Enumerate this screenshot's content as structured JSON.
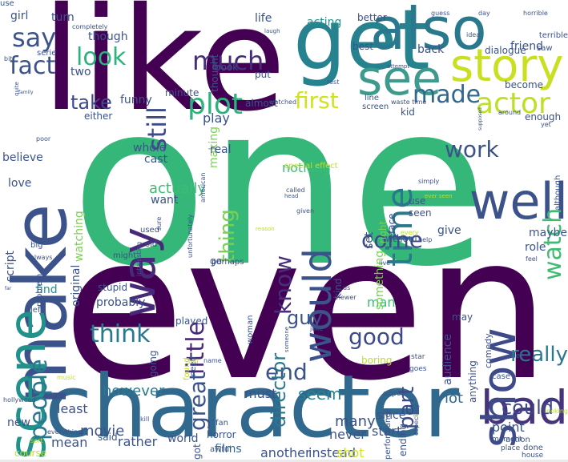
{
  "palette": {
    "purple": "#440154",
    "indigo": "#3b528b",
    "teal": "#21918c",
    "green": "#3fbc73",
    "lime": "#bddf26",
    "yellow": "#fde725"
  },
  "words": [
    {
      "text": "one",
      "color": "#35b779",
      "orientation": "horizontal"
    },
    {
      "text": "even",
      "color": "#440154",
      "orientation": "horizontal"
    },
    {
      "text": "like",
      "color": "#440154",
      "orientation": "horizontal"
    },
    {
      "text": "character",
      "color": "#31688e",
      "orientation": "horizontal"
    },
    {
      "text": "get",
      "color": "#26828e",
      "orientation": "horizontal"
    },
    {
      "text": "make",
      "color": "#3b528b",
      "orientation": "vertical"
    },
    {
      "text": "also",
      "color": "#2a788e",
      "orientation": "horizontal"
    },
    {
      "text": "story",
      "color": "#c8e020",
      "orientation": "horizontal"
    },
    {
      "text": "see",
      "color": "#3e9a8c",
      "orientation": "horizontal"
    },
    {
      "text": "well",
      "color": "#3b528b",
      "orientation": "horizontal"
    },
    {
      "text": "scene",
      "color": "#21918c",
      "orientation": "vertical"
    },
    {
      "text": "bad",
      "color": "#46337e",
      "orientation": "horizontal"
    },
    {
      "text": "show",
      "color": "#3e4a89",
      "orientation": "vertical"
    },
    {
      "text": "way",
      "color": "#482878",
      "orientation": "vertical"
    },
    {
      "text": "would",
      "color": "#3b528b",
      "orientation": "vertical"
    },
    {
      "text": "time",
      "color": "#2a788e",
      "orientation": "vertical"
    },
    {
      "text": "plot",
      "color": "#2db27d",
      "orientation": "horizontal"
    },
    {
      "text": "actor",
      "color": "#bddf26",
      "orientation": "horizontal"
    },
    {
      "text": "made",
      "color": "#31688e",
      "orientation": "horizontal"
    },
    {
      "text": "first",
      "color": "#d2e21b",
      "orientation": "horizontal"
    },
    {
      "text": "much",
      "color": "#472c7a",
      "orientation": "horizontal"
    },
    {
      "text": "say",
      "color": "#3b528b",
      "orientation": "horizontal"
    },
    {
      "text": "look",
      "color": "#2db27d",
      "orientation": "horizontal"
    },
    {
      "text": "fact",
      "color": "#3b528b",
      "orientation": "horizontal"
    },
    {
      "text": "still",
      "color": "#3e4a89",
      "orientation": "vertical"
    },
    {
      "text": "take",
      "color": "#3e4989",
      "orientation": "horizontal"
    },
    {
      "text": "work",
      "color": "#3b528b",
      "orientation": "horizontal"
    },
    {
      "text": "watch",
      "color": "#3fbc73",
      "orientation": "vertical"
    },
    {
      "text": "know",
      "color": "#472d7b",
      "orientation": "vertical"
    },
    {
      "text": "come",
      "color": "#3e4989",
      "orientation": "horizontal"
    },
    {
      "text": "little",
      "color": "#482878",
      "orientation": "vertical"
    },
    {
      "text": "thing",
      "color": "#7ad151",
      "orientation": "vertical"
    },
    {
      "text": "people",
      "color": "#2a788e",
      "orientation": "vertical"
    },
    {
      "text": "think",
      "color": "#2a788e",
      "orientation": "horizontal"
    },
    {
      "text": "great",
      "color": "#3b528b",
      "orientation": "vertical"
    },
    {
      "text": "end",
      "color": "#3b528b",
      "orientation": "horizontal"
    },
    {
      "text": "good",
      "color": "#3e4989",
      "orientation": "horizontal"
    },
    {
      "text": "really",
      "color": "#2a788e",
      "orientation": "horizontal"
    },
    {
      "text": "director",
      "color": "#2a788e",
      "orientation": "vertical"
    },
    {
      "text": "guy",
      "color": "#3b528b",
      "orientation": "horizontal"
    },
    {
      "text": "part",
      "color": "#3e4989",
      "orientation": "vertical"
    },
    {
      "text": "could",
      "color": "#3e4989",
      "orientation": "horizontal"
    },
    {
      "text": "seem",
      "color": "#26828e",
      "orientation": "horizontal"
    },
    {
      "text": "however",
      "color": "#2a788e",
      "orientation": "horizontal"
    },
    {
      "text": "actually",
      "color": "#3fbc73",
      "orientation": "horizontal"
    },
    {
      "text": "play",
      "color": "#3b528b",
      "orientation": "horizontal"
    },
    {
      "text": "funny",
      "color": "#3b528b",
      "orientation": "horizontal"
    },
    {
      "text": "nothing",
      "color": "#3fbc73",
      "orientation": "horizontal"
    },
    {
      "text": "man",
      "color": "#3fbc73",
      "orientation": "horizontal"
    },
    {
      "text": "lot",
      "color": "#31688e",
      "orientation": "horizontal"
    },
    {
      "text": "movie",
      "color": "#3b528b",
      "orientation": "horizontal"
    },
    {
      "text": "many",
      "color": "#3b528b",
      "orientation": "horizontal"
    },
    {
      "text": "never",
      "color": "#3b528b",
      "orientation": "horizontal"
    },
    {
      "text": "since",
      "color": "#3b528b",
      "orientation": "horizontal"
    },
    {
      "text": "must",
      "color": "#3b528b",
      "orientation": "horizontal"
    },
    {
      "text": "least",
      "color": "#3b528b",
      "orientation": "horizontal"
    },
    {
      "text": "mean",
      "color": "#3b528b",
      "orientation": "horizontal"
    },
    {
      "text": "rather",
      "color": "#3b528b",
      "orientation": "horizontal"
    },
    {
      "text": "start",
      "color": "#3b528b",
      "orientation": "horizontal"
    },
    {
      "text": "another",
      "color": "#3b528b",
      "orientation": "horizontal"
    },
    {
      "text": "instead",
      "color": "#3b528b",
      "orientation": "horizontal"
    },
    {
      "text": "shot",
      "color": "#d2e21b",
      "orientation": "horizontal"
    },
    {
      "text": "world",
      "color": "#3b528b",
      "orientation": "horizontal"
    },
    {
      "text": "films",
      "color": "#31688e",
      "orientation": "horizontal"
    },
    {
      "text": "point",
      "color": "#3b528b",
      "orientation": "horizontal"
    },
    {
      "text": "role",
      "color": "#3b528b",
      "orientation": "horizontal"
    },
    {
      "text": "maybe",
      "color": "#3b528b",
      "orientation": "horizontal"
    },
    {
      "text": "give",
      "color": "#3b528b",
      "orientation": "horizontal"
    },
    {
      "text": "probably",
      "color": "#3b528b",
      "orientation": "horizontal"
    },
    {
      "text": "find",
      "color": "#21918c",
      "orientation": "horizontal"
    },
    {
      "text": "love",
      "color": "#3b528b",
      "orientation": "horizontal"
    },
    {
      "text": "want",
      "color": "#3b528b",
      "orientation": "horizontal"
    },
    {
      "text": "cast",
      "color": "#3b528b",
      "orientation": "horizontal"
    },
    {
      "text": "whole",
      "color": "#3b528b",
      "orientation": "horizontal"
    },
    {
      "text": "either",
      "color": "#3b528b",
      "orientation": "horizontal"
    },
    {
      "text": "back",
      "color": "#3b528b",
      "orientation": "horizontal"
    },
    {
      "text": "friend",
      "color": "#3b528b",
      "orientation": "horizontal"
    },
    {
      "text": "two",
      "color": "#3b528b",
      "orientation": "horizontal"
    },
    {
      "text": "though",
      "color": "#3b528b",
      "orientation": "horizontal"
    },
    {
      "text": "turn",
      "color": "#3b528b",
      "orientation": "horizontal"
    },
    {
      "text": "girl",
      "color": "#3b528b",
      "orientation": "horizontal"
    },
    {
      "text": "life",
      "color": "#3b528b",
      "orientation": "horizontal"
    },
    {
      "text": "acting",
      "color": "#21918c",
      "orientation": "horizontal"
    },
    {
      "text": "better",
      "color": "#3b528b",
      "orientation": "horizontal"
    },
    {
      "text": "minute",
      "color": "#3b528b",
      "orientation": "horizontal"
    },
    {
      "text": "thought",
      "color": "#3b528b",
      "orientation": "vertical"
    },
    {
      "text": "book",
      "color": "#3b528b",
      "orientation": "horizontal"
    },
    {
      "text": "put",
      "color": "#3b528b",
      "orientation": "horizontal"
    },
    {
      "text": "almost",
      "color": "#3b528b",
      "orientation": "horizontal"
    },
    {
      "text": "kid",
      "color": "#3b528b",
      "orientation": "horizontal"
    },
    {
      "text": "become",
      "color": "#3b528b",
      "orientation": "horizontal"
    },
    {
      "text": "enough",
      "color": "#3b528b",
      "orientation": "horizontal"
    },
    {
      "text": "believe",
      "color": "#3b528b",
      "orientation": "horizontal"
    },
    {
      "text": "watching",
      "color": "#7ad151",
      "orientation": "vertical"
    },
    {
      "text": "original",
      "color": "#3b528b",
      "orientation": "vertical"
    },
    {
      "text": "script",
      "color": "#3b528b",
      "orientation": "vertical"
    },
    {
      "text": "making",
      "color": "#7ad151",
      "orientation": "vertical"
    },
    {
      "text": "real",
      "color": "#3b528b",
      "orientation": "horizontal"
    },
    {
      "text": "go",
      "color": "#3b528b",
      "orientation": "horizontal"
    },
    {
      "text": "kind",
      "color": "#3b528b",
      "orientation": "vertical"
    },
    {
      "text": "audience",
      "color": "#3b528b",
      "orientation": "vertical"
    },
    {
      "text": "something",
      "color": "#7ad151",
      "orientation": "vertical"
    },
    {
      "text": "without",
      "color": "#3b528b",
      "orientation": "horizontal"
    },
    {
      "text": "set",
      "color": "#3b528b",
      "orientation": "vertical"
    },
    {
      "text": "right",
      "color": "#7ad151",
      "orientation": "vertical"
    },
    {
      "text": "use",
      "color": "#3b528b",
      "orientation": "horizontal"
    },
    {
      "text": "seen",
      "color": "#3b528b",
      "orientation": "horizontal"
    },
    {
      "text": "best",
      "color": "#3b528b",
      "orientation": "horizontal"
    },
    {
      "text": "dialogue",
      "color": "#3b528b",
      "orientation": "horizontal"
    },
    {
      "text": "line",
      "color": "#3b528b",
      "orientation": "horizontal"
    },
    {
      "text": "screen",
      "color": "#3b528b",
      "orientation": "horizontal"
    },
    {
      "text": "may",
      "color": "#3b528b",
      "orientation": "horizontal"
    },
    {
      "text": "anything",
      "color": "#3b528b",
      "orientation": "vertical"
    },
    {
      "text": "comedy",
      "color": "#3b528b",
      "orientation": "vertical"
    },
    {
      "text": "although",
      "color": "#3b528b",
      "orientation": "vertical"
    },
    {
      "text": "performance",
      "color": "#3b528b",
      "orientation": "vertical"
    },
    {
      "text": "ending",
      "color": "#3b528b",
      "orientation": "vertical"
    },
    {
      "text": "action",
      "color": "#3b528b",
      "orientation": "horizontal"
    },
    {
      "text": "done",
      "color": "#3b528b",
      "orientation": "horizontal"
    },
    {
      "text": "fan",
      "color": "#3b528b",
      "orientation": "horizontal"
    },
    {
      "text": "horror",
      "color": "#3b528b",
      "orientation": "horizontal"
    },
    {
      "text": "awful",
      "color": "#3b528b",
      "orientation": "horizontal"
    },
    {
      "text": "said",
      "color": "#3b528b",
      "orientation": "horizontal"
    },
    {
      "text": "new",
      "color": "#3b528b",
      "orientation": "horizontal"
    },
    {
      "text": "course",
      "color": "#bddf26",
      "orientation": "horizontal"
    },
    {
      "text": "got",
      "color": "#3b528b",
      "orientation": "vertical"
    },
    {
      "text": "going",
      "color": "#3b528b",
      "orientation": "vertical"
    },
    {
      "text": "boring",
      "color": "#bddf26",
      "orientation": "horizontal"
    },
    {
      "text": "stupid",
      "color": "#3b528b",
      "orientation": "horizontal"
    },
    {
      "text": "played",
      "color": "#3b528b",
      "orientation": "horizontal"
    },
    {
      "text": "found",
      "color": "#bddf26",
      "orientation": "vertical"
    },
    {
      "text": "need",
      "color": "#3b528b",
      "orientation": "vertical"
    },
    {
      "text": "woman",
      "color": "#3b528b",
      "orientation": "vertical"
    },
    {
      "text": "problem",
      "color": "#3b528b",
      "orientation": "vertical"
    },
    {
      "text": "might",
      "color": "#3b528b",
      "orientation": "horizontal"
    },
    {
      "text": "old",
      "color": "#3b528b",
      "orientation": "horizontal"
    },
    {
      "text": "sure",
      "color": "#3b528b",
      "orientation": "vertical"
    },
    {
      "text": "used",
      "color": "#3b528b",
      "orientation": "horizontal"
    },
    {
      "text": "big",
      "color": "#3b528b",
      "orientation": "horizontal"
    },
    {
      "text": "left",
      "color": "#3b528b",
      "orientation": "horizontal"
    },
    {
      "text": "around",
      "color": "#3b528b",
      "orientation": "horizontal"
    },
    {
      "text": "yet",
      "color": "#3b528b",
      "orientation": "horizontal"
    },
    {
      "text": "let",
      "color": "#3b528b",
      "orientation": "horizontal"
    },
    {
      "text": "feel",
      "color": "#3b528b",
      "orientation": "horizontal"
    },
    {
      "text": "case",
      "color": "#3b528b",
      "orientation": "horizontal"
    },
    {
      "text": "star",
      "color": "#3b528b",
      "orientation": "horizontal"
    },
    {
      "text": "goes",
      "color": "#3b528b",
      "orientation": "horizontal"
    },
    {
      "text": "appear",
      "color": "#3b528b",
      "orientation": "horizontal"
    },
    {
      "text": "moment",
      "color": "#3b528b",
      "orientation": "horizontal"
    },
    {
      "text": "place",
      "color": "#3b528b",
      "orientation": "horizontal"
    },
    {
      "text": "house",
      "color": "#3b528b",
      "orientation": "horizontal"
    },
    {
      "text": "everything",
      "color": "#3b528b",
      "orientation": "horizontal"
    },
    {
      "text": "hollywood",
      "color": "#3b528b",
      "orientation": "horizontal"
    },
    {
      "text": "music",
      "color": "#bddf26",
      "orientation": "horizontal"
    },
    {
      "text": "kill",
      "color": "#3b528b",
      "orientation": "horizontal"
    },
    {
      "text": "name",
      "color": "#3b528b",
      "orientation": "horizontal"
    },
    {
      "text": "tell",
      "color": "#bddf26",
      "orientation": "horizontal"
    },
    {
      "text": "us",
      "color": "#3b528b",
      "orientation": "horizontal"
    },
    {
      "text": "viewer",
      "color": "#3b528b",
      "orientation": "horizontal"
    },
    {
      "text": "joke",
      "color": "#3b528b",
      "orientation": "horizontal"
    },
    {
      "text": "someone",
      "color": "#3b528b",
      "orientation": "vertical"
    },
    {
      "text": "perhaps",
      "color": "#3b528b",
      "orientation": "horizontal"
    },
    {
      "text": "live",
      "color": "#3b528b",
      "orientation": "horizontal"
    },
    {
      "text": "every",
      "color": "#bddf26",
      "orientation": "horizontal"
    },
    {
      "text": "help",
      "color": "#3b528b",
      "orientation": "horizontal"
    },
    {
      "text": "called",
      "color": "#3b528b",
      "orientation": "horizontal"
    },
    {
      "text": "given",
      "color": "#3b528b",
      "orientation": "horizontal"
    },
    {
      "text": "head",
      "color": "#3b528b",
      "orientation": "horizontal"
    },
    {
      "text": "ever seen",
      "color": "#bddf26",
      "orientation": "horizontal"
    },
    {
      "text": "special effect",
      "color": "#bddf26",
      "orientation": "horizontal"
    },
    {
      "text": "reason",
      "color": "#bddf26",
      "orientation": "horizontal"
    },
    {
      "text": "interesting",
      "color": "#3b528b",
      "orientation": "vertical"
    },
    {
      "text": "unfortunately",
      "color": "#3b528b",
      "orientation": "vertical"
    },
    {
      "text": "american",
      "color": "#3b528b",
      "orientation": "vertical"
    },
    {
      "text": "simply",
      "color": "#3b528b",
      "orientation": "horizontal"
    },
    {
      "text": "supposed",
      "color": "#3b528b",
      "orientation": "vertical"
    },
    {
      "text": "waste time",
      "color": "#3b528b",
      "orientation": "horizontal"
    },
    {
      "text": "watched",
      "color": "#3b528b",
      "orientation": "horizontal"
    },
    {
      "text": "rest",
      "color": "#3b528b",
      "orientation": "horizontal"
    },
    {
      "text": "attempt",
      "color": "#3b528b",
      "orientation": "horizontal"
    },
    {
      "text": "laugh",
      "color": "#3b528b",
      "orientation": "horizontal"
    },
    {
      "text": "completely",
      "color": "#3b528b",
      "orientation": "horizontal"
    },
    {
      "text": "serie",
      "color": "#3b528b",
      "orientation": "horizontal"
    },
    {
      "text": "bit",
      "color": "#3b528b",
      "orientation": "horizontal"
    },
    {
      "text": "quite",
      "color": "#3b528b",
      "orientation": "vertical"
    },
    {
      "text": "family",
      "color": "#3b528b",
      "orientation": "horizontal"
    },
    {
      "text": "poor",
      "color": "#3b528b",
      "orientation": "horizontal"
    },
    {
      "text": "guess",
      "color": "#3b528b",
      "orientation": "horizontal"
    },
    {
      "text": "day",
      "color": "#3b528b",
      "orientation": "horizontal"
    },
    {
      "text": "horrible",
      "color": "#3b528b",
      "orientation": "horizontal"
    },
    {
      "text": "terrible",
      "color": "#3b528b",
      "orientation": "horizontal"
    },
    {
      "text": "idea",
      "color": "#3b528b",
      "orientation": "horizontal"
    },
    {
      "text": "saw",
      "color": "#3b528b",
      "orientation": "horizontal"
    },
    {
      "text": "looking",
      "color": "#bddf26",
      "orientation": "horizontal"
    },
    {
      "text": "especially",
      "color": "#3b528b",
      "orientation": "vertical"
    },
    {
      "text": "always",
      "color": "#3b528b",
      "orientation": "horizontal"
    },
    {
      "text": "sort",
      "color": "#bddf26",
      "orientation": "horizontal"
    },
    {
      "text": "far",
      "color": "#3b528b",
      "orientation": "horizontal"
    },
    {
      "text": "face",
      "color": "#3b528b",
      "orientation": "vertical"
    },
    {
      "text": "use",
      "color": "#3b528b",
      "orientation": "horizontal"
    }
  ]
}
